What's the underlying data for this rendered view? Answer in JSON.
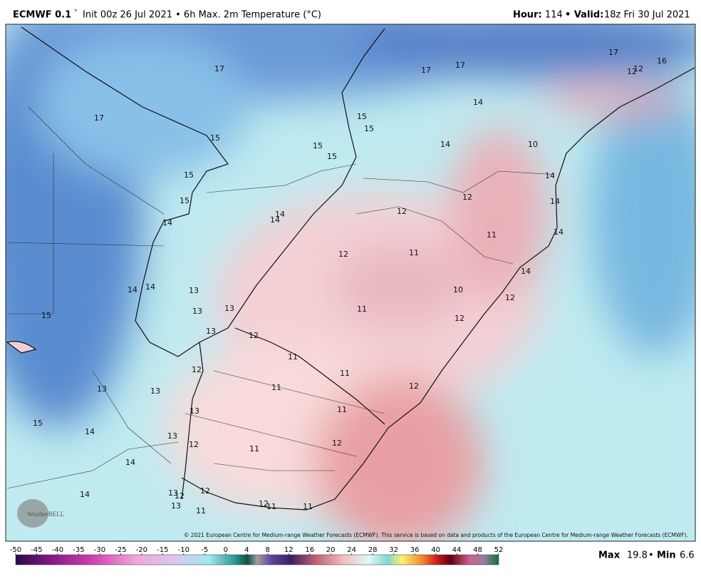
{
  "header": {
    "model": "ECMWF 0.1",
    "degree": "°",
    "description": "Init 00z 26 Jul 2021 • 6h Max. 2m Temperature (°C)",
    "hour_label": "Hour:",
    "hour": "114",
    "valid_label": "• Valid:",
    "valid": "18z Fri 30 Jul 2021"
  },
  "map": {
    "labels": [
      "17",
      "17",
      "17",
      "17",
      "17",
      "12",
      "12",
      "16",
      "14",
      "15",
      "15",
      "15",
      "15",
      "15",
      "14",
      "10",
      "15",
      "14",
      "12",
      "15",
      "12",
      "14",
      "14",
      "14",
      "14",
      "11",
      "14",
      "12",
      "11",
      "14",
      "14",
      "14",
      "13",
      "10",
      "12",
      "13",
      "13",
      "11",
      "15",
      "12",
      "13",
      "12",
      "11",
      "11",
      "12",
      "11",
      "12",
      "13",
      "13",
      "11",
      "13",
      "15",
      "14",
      "13",
      "12",
      "12",
      "11",
      "14",
      "14",
      "13",
      "12",
      "12",
      "13",
      "12",
      "11",
      "11",
      "11"
    ],
    "copyright": "© 2021 European Centre for Medium-range Weather Forecasts (ECMWF). This service is based on data and products of the European Centre for Medium-range Weather Forecasts (ECMWF).",
    "logo": "WeatherBELL"
  },
  "colorbar": {
    "ticks": [
      -50,
      -45,
      -40,
      -35,
      -30,
      -25,
      -20,
      -15,
      -10,
      -5,
      0,
      4,
      8,
      12,
      16,
      20,
      24,
      28,
      32,
      36,
      40,
      44,
      48,
      52
    ]
  },
  "stats": {
    "max_label": "Max",
    "max": "19.8",
    "separator": "•",
    "min_label": "Min",
    "min": "6.6"
  }
}
